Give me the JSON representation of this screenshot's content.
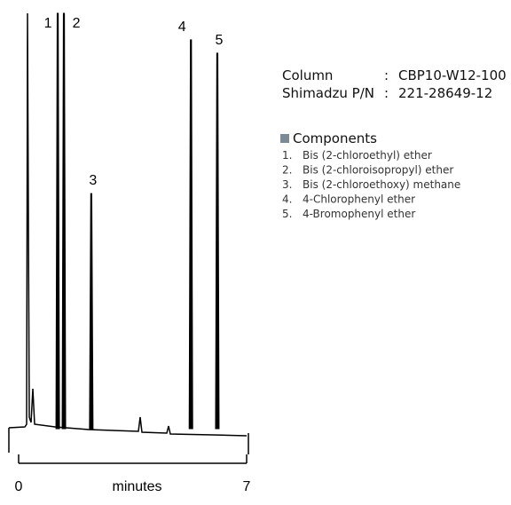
{
  "chart_data": {
    "type": "chromatogram",
    "xlabel": "minutes",
    "xlim": [
      0,
      7
    ],
    "xticks": [
      0,
      7
    ],
    "ylim": [
      0,
      100
    ],
    "color": "#000000",
    "categories": [
      "1",
      "2",
      "3",
      "4",
      "5"
    ],
    "x": [
      1.2,
      1.39,
      2.23,
      5.29,
      6.1
    ],
    "values": [
      100,
      100,
      56.5,
      93.6,
      90.4
    ]
  },
  "panel": {
    "rows": [
      [
        "Column",
        ":",
        "CBP10-W12-100"
      ],
      [
        "Shimadzu P/N",
        ":",
        "221-28649-12"
      ]
    ],
    "components_title": "Components",
    "components": [
      {
        "num": "1.",
        "name": "Bis (2-chloroethyl) ether"
      },
      {
        "num": "2.",
        "name": "Bis (2-chloroisopropyl) ether"
      },
      {
        "num": "3.",
        "name": "Bis (2-chloroethoxy) methane"
      },
      {
        "num": "4.",
        "name": "4-Chlorophenyl ether"
      },
      {
        "num": "5.",
        "name": "4-Bromophenyl ether"
      }
    ]
  }
}
